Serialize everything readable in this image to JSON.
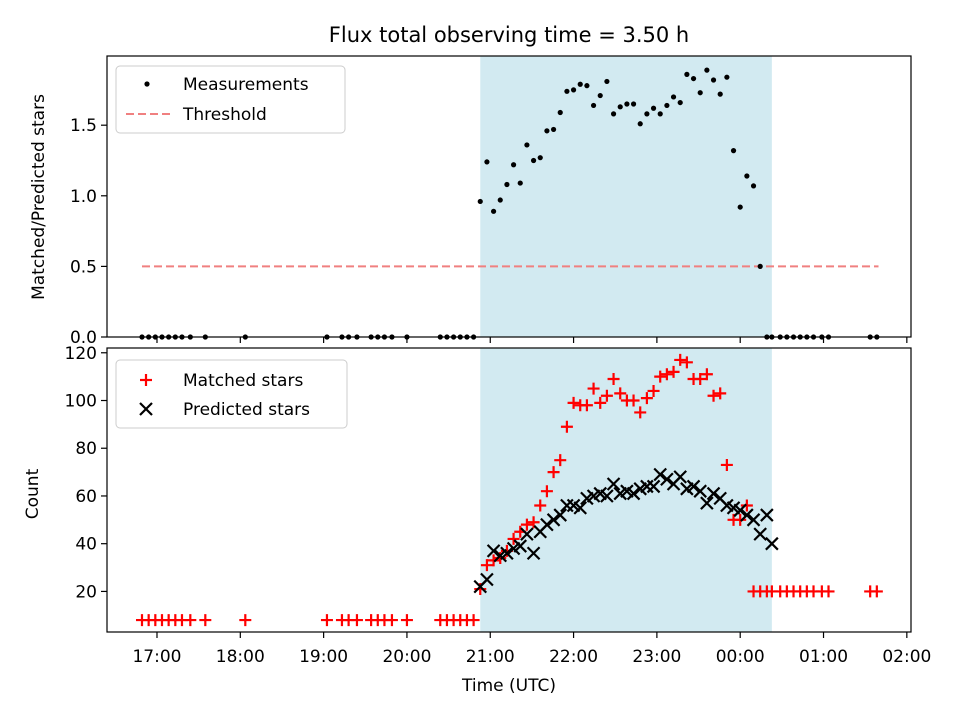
{
  "chart_data": [
    {
      "type": "scatter",
      "title": "Flux total observing time = 3.50 h",
      "ylabel": "Matched/Predicted stars",
      "xlabel": "",
      "xlim": [
        16.4,
        26.05
      ],
      "ylim": [
        0,
        1.99
      ],
      "yticks": [
        0.0,
        0.5,
        1.0,
        1.5
      ],
      "ytick_labels": [
        "0.0",
        "0.5",
        "1.0",
        "1.5"
      ],
      "shaded_region": [
        20.88,
        24.38
      ],
      "shade_color": "#add8e6",
      "legend_position": "upper left",
      "series": [
        {
          "name": "Measurements",
          "marker": "dot",
          "color": "#000000",
          "x": [
            16.82,
            16.9,
            16.98,
            17.06,
            17.14,
            17.22,
            17.3,
            17.4,
            17.58,
            18.06,
            19.04,
            19.22,
            19.3,
            19.4,
            19.57,
            19.65,
            19.73,
            19.82,
            20.0,
            20.4,
            20.48,
            20.56,
            20.64,
            20.72,
            20.8,
            20.88,
            20.96,
            21.04,
            21.12,
            21.2,
            21.28,
            21.36,
            21.44,
            21.52,
            21.6,
            21.68,
            21.76,
            21.84,
            21.92,
            22.0,
            22.08,
            22.16,
            22.24,
            22.32,
            22.4,
            22.48,
            22.56,
            22.64,
            22.72,
            22.8,
            22.88,
            22.96,
            23.04,
            23.12,
            23.2,
            23.28,
            23.36,
            23.44,
            23.52,
            23.6,
            23.68,
            23.76,
            23.84,
            23.92,
            24.0,
            24.08,
            24.16,
            24.24,
            24.32,
            24.38,
            24.48,
            24.56,
            24.64,
            24.72,
            24.8,
            24.88,
            24.98,
            25.06,
            25.56,
            25.64
          ],
          "y": [
            0,
            0,
            0,
            0,
            0,
            0,
            0,
            0,
            0,
            0,
            0,
            0,
            0,
            0,
            0,
            0,
            0,
            0,
            0,
            0,
            0,
            0,
            0,
            0,
            0,
            0.96,
            1.24,
            0.89,
            0.97,
            1.08,
            1.22,
            1.09,
            1.36,
            1.25,
            1.27,
            1.46,
            1.47,
            1.59,
            1.74,
            1.75,
            1.79,
            1.78,
            1.64,
            1.71,
            1.81,
            1.58,
            1.63,
            1.65,
            1.65,
            1.51,
            1.58,
            1.62,
            1.58,
            1.64,
            1.7,
            1.66,
            1.86,
            1.83,
            1.73,
            1.89,
            1.82,
            1.72,
            1.84,
            1.32,
            0.92,
            1.14,
            1.07,
            0.5,
            0,
            0,
            0,
            0,
            0,
            0,
            0,
            0,
            0,
            0,
            0,
            0
          ]
        },
        {
          "name": "Threshold",
          "marker": "dashed-line",
          "color": "#f08080",
          "x": [
            16.82,
            25.66
          ],
          "y": [
            0.5,
            0.5
          ]
        }
      ]
    },
    {
      "type": "scatter",
      "title": "",
      "ylabel": "Count",
      "xlabel": "Time (UTC)",
      "xlim": [
        16.4,
        26.05
      ],
      "ylim": [
        3,
        122
      ],
      "yticks": [
        20,
        40,
        60,
        80,
        100,
        120
      ],
      "ytick_labels": [
        "20",
        "40",
        "60",
        "80",
        "100",
        "120"
      ],
      "xticks": [
        17,
        18,
        19,
        20,
        21,
        22,
        23,
        24,
        25,
        26
      ],
      "xtick_labels": [
        "17:00",
        "18:00",
        "19:00",
        "20:00",
        "21:00",
        "22:00",
        "23:00",
        "00:00",
        "01:00",
        "02:00"
      ],
      "shaded_region": [
        20.88,
        24.38
      ],
      "shade_color": "#add8e6",
      "legend_position": "upper left",
      "series": [
        {
          "name": "Matched stars",
          "marker": "plus",
          "color": "#ff0000",
          "x": [
            16.82,
            16.9,
            16.98,
            17.06,
            17.14,
            17.22,
            17.3,
            17.4,
            17.58,
            18.06,
            19.04,
            19.22,
            19.3,
            19.4,
            19.57,
            19.65,
            19.73,
            19.82,
            20.0,
            20.4,
            20.48,
            20.56,
            20.64,
            20.72,
            20.8,
            20.88,
            20.96,
            21.04,
            21.12,
            21.2,
            21.28,
            21.36,
            21.44,
            21.52,
            21.6,
            21.68,
            21.76,
            21.84,
            21.92,
            22.0,
            22.08,
            22.16,
            22.24,
            22.32,
            22.4,
            22.48,
            22.56,
            22.64,
            22.72,
            22.8,
            22.88,
            22.96,
            23.04,
            23.12,
            23.2,
            23.28,
            23.36,
            23.44,
            23.52,
            23.6,
            23.68,
            23.76,
            23.84,
            23.92,
            24.0,
            24.08,
            24.16,
            24.24,
            24.32,
            24.38,
            24.48,
            24.56,
            24.64,
            24.72,
            24.8,
            24.88,
            24.98,
            25.06,
            25.56,
            25.64
          ],
          "y": [
            8,
            8,
            8,
            8,
            8,
            8,
            8,
            8,
            8,
            8,
            8,
            8,
            8,
            8,
            8,
            8,
            8,
            8,
            8,
            8,
            8,
            8,
            8,
            8,
            8,
            21,
            31,
            33,
            34,
            37,
            42,
            45,
            48,
            49,
            56,
            62,
            70,
            75,
            89,
            99,
            98,
            98,
            105,
            99,
            102,
            109,
            103,
            100,
            100,
            95,
            101,
            104,
            110,
            111,
            112,
            117,
            116,
            109,
            109,
            111,
            102,
            103,
            73,
            50,
            50,
            56,
            20,
            20,
            20,
            20,
            20,
            20,
            20,
            20,
            20,
            20,
            20,
            20,
            20,
            20
          ]
        },
        {
          "name": "Predicted stars",
          "marker": "x",
          "color": "#000000",
          "x": [
            20.88,
            20.96,
            21.04,
            21.12,
            21.2,
            21.28,
            21.36,
            21.44,
            21.52,
            21.6,
            21.68,
            21.76,
            21.84,
            21.92,
            22.0,
            22.08,
            22.16,
            22.24,
            22.32,
            22.4,
            22.48,
            22.56,
            22.64,
            22.72,
            22.8,
            22.88,
            22.96,
            23.04,
            23.12,
            23.2,
            23.28,
            23.36,
            23.44,
            23.52,
            23.6,
            23.68,
            23.76,
            23.84,
            23.92,
            24.0,
            24.08,
            24.16,
            24.24,
            24.32,
            24.38
          ],
          "y": [
            22,
            25,
            37,
            35,
            36,
            38,
            39,
            44,
            36,
            45,
            48,
            50,
            52,
            56,
            56,
            55,
            59,
            60,
            61,
            60,
            65,
            61,
            62,
            61,
            63,
            64,
            64,
            69,
            67,
            65,
            68,
            63,
            64,
            62,
            57,
            61,
            59,
            56,
            55,
            54,
            52,
            50,
            44,
            52,
            40
          ]
        }
      ]
    }
  ]
}
